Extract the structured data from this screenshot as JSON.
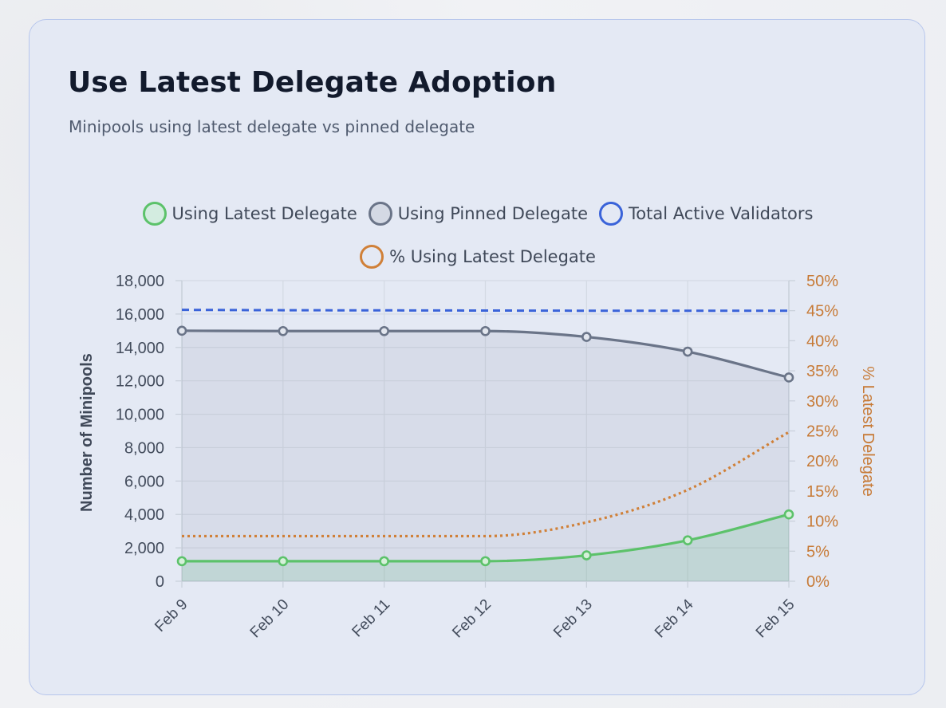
{
  "card": {
    "title": "Use Latest Delegate Adoption",
    "subtitle": "Minipools using latest delegate vs pinned delegate"
  },
  "legend": [
    {
      "label": "Using Latest Delegate",
      "color": "#5cc26a",
      "fill": "#d3ece0"
    },
    {
      "label": "Using Pinned Delegate",
      "color": "#6a7488",
      "fill": "#d4d9e4"
    },
    {
      "label": "Total Active Validators",
      "color": "#3a63d9",
      "fill": "transparent"
    },
    {
      "label": "% Using Latest Delegate",
      "color": "#d08038",
      "fill": "transparent"
    }
  ],
  "chart_data": {
    "type": "line",
    "categories": [
      "Feb 9",
      "Feb 10",
      "Feb 11",
      "Feb 12",
      "Feb 13",
      "Feb 14",
      "Feb 15"
    ],
    "series": [
      {
        "name": "Using Latest Delegate",
        "axis": "left",
        "style": "solid-area",
        "color": "#5cc26a",
        "values": [
          1200,
          1200,
          1200,
          1200,
          1550,
          2450,
          4000
        ]
      },
      {
        "name": "Using Pinned Delegate",
        "axis": "left",
        "style": "solid-area",
        "color": "#6a7488",
        "values": [
          15000,
          14980,
          14980,
          14980,
          14630,
          13750,
          12200
        ]
      },
      {
        "name": "Total Active Validators",
        "axis": "left",
        "style": "dashed",
        "color": "#3a63d9",
        "values": [
          16250,
          16230,
          16220,
          16210,
          16200,
          16200,
          16200
        ]
      },
      {
        "name": "% Using Latest Delegate",
        "axis": "right",
        "style": "dotted",
        "color": "#d08038",
        "values": [
          7.5,
          7.5,
          7.5,
          7.5,
          9.8,
          15.2,
          24.8
        ]
      }
    ],
    "y_left": {
      "label": "Number of Minipools",
      "min": 0,
      "max": 18000,
      "ticks": [
        "0",
        "2,000",
        "4,000",
        "6,000",
        "8,000",
        "10,000",
        "12,000",
        "14,000",
        "16,000",
        "18,000"
      ]
    },
    "y_right": {
      "label": "% Latest Delegate",
      "min": 0,
      "max": 50,
      "ticks": [
        "0%",
        "5%",
        "10%",
        "15%",
        "20%",
        "25%",
        "30%",
        "35%",
        "40%",
        "45%",
        "50%"
      ]
    },
    "grid": true,
    "legend_position": "top"
  }
}
